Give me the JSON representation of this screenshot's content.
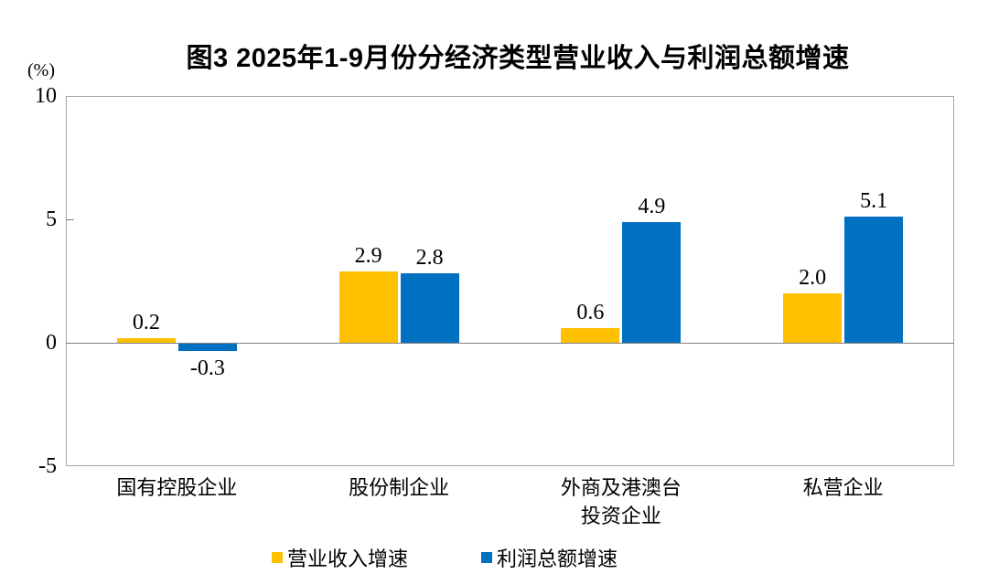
{
  "chart_data": {
    "type": "bar",
    "title": "图3 2025年1-9月份分经济类型营业收入与利润总额增速",
    "unit_label": "(%)",
    "categories": [
      "国有控股企业",
      "股份制企业",
      "外商及港澳台\n投资企业",
      "私营企业"
    ],
    "series": [
      {
        "name": "营业收入增速",
        "color": "#FFC000",
        "values": [
          0.2,
          2.9,
          0.6,
          2.0
        ],
        "labels": [
          "0.2",
          "2.9",
          "0.6",
          "2.0"
        ]
      },
      {
        "name": "利润总额增速",
        "color": "#0070C0",
        "values": [
          -0.3,
          2.8,
          4.9,
          5.1
        ],
        "labels": [
          "-0.3",
          "2.8",
          "4.9",
          "5.1"
        ]
      }
    ],
    "ylim": [
      -5,
      10
    ],
    "yticks": [
      10,
      5,
      0,
      -5
    ],
    "grid": false,
    "legend_position": "bottom",
    "axis_color": "#808080",
    "frame_color": "#a6a6a6",
    "text_color": "#000000"
  }
}
